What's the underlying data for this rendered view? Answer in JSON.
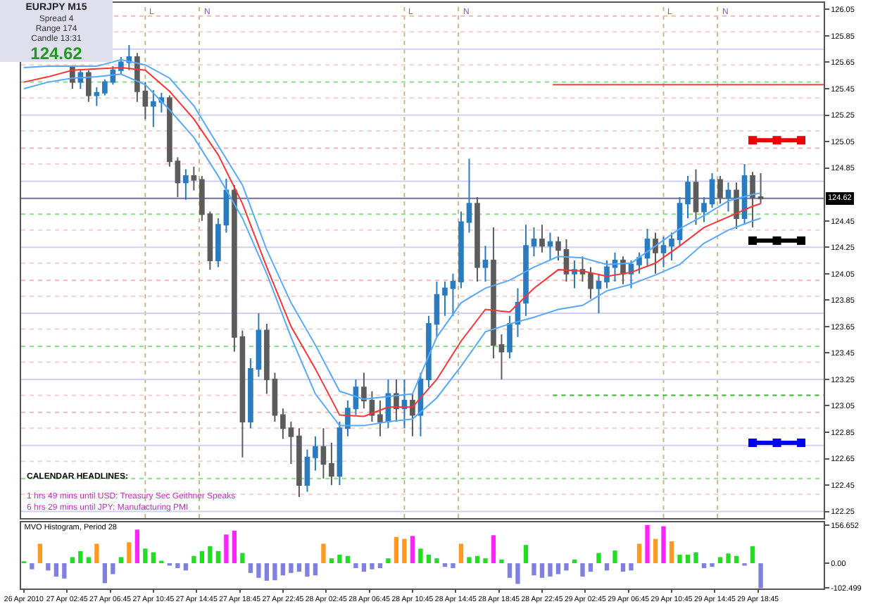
{
  "chart_data": [
    {
      "type": "candlestick",
      "title": "EURJPY M15",
      "annotations": [
        "Spread 4",
        "Range 174",
        "Candle 13:31",
        "124.62",
        "CALENDAR HEADLINES:",
        "1 hrs 49 mins until USD: Treasury Sec Geithner Speaks",
        "6 hrs 29 mins until JPY: Manufacturing PMI"
      ],
      "x": [
        "2010-04-27T03:15",
        "2010-04-27T04:00",
        "2010-04-27T04:45",
        "2010-04-27T05:30",
        "2010-04-27T06:15",
        "2010-04-27T07:00",
        "2010-04-27T07:45",
        "2010-04-27T08:30",
        "2010-04-27T09:15",
        "2010-04-27T10:00",
        "2010-04-27T10:45",
        "2010-04-27T11:30",
        "2010-04-27T12:15",
        "2010-04-27T13:00",
        "2010-04-27T13:45",
        "2010-04-27T14:30",
        "2010-04-27T15:15",
        "2010-04-27T16:00",
        "2010-04-27T16:45",
        "2010-04-27T17:30",
        "2010-04-27T18:15",
        "2010-04-27T19:00",
        "2010-04-27T19:45",
        "2010-04-27T20:30",
        "2010-04-27T21:15",
        "2010-04-27T22:00",
        "2010-04-27T22:45",
        "2010-04-27T23:30",
        "2010-04-28T00:15",
        "2010-04-28T01:00",
        "2010-04-28T01:45",
        "2010-04-28T02:30",
        "2010-04-28T03:15",
        "2010-04-28T04:00",
        "2010-04-28T04:45",
        "2010-04-28T05:30",
        "2010-04-28T06:15",
        "2010-04-28T07:00",
        "2010-04-28T07:45",
        "2010-04-28T08:30",
        "2010-04-28T09:15",
        "2010-04-28T10:00",
        "2010-04-28T10:45",
        "2010-04-28T11:30",
        "2010-04-28T12:15",
        "2010-04-28T13:00",
        "2010-04-28T13:45",
        "2010-04-28T14:30",
        "2010-04-28T15:15",
        "2010-04-28T16:00",
        "2010-04-28T16:45",
        "2010-04-28T17:30",
        "2010-04-28T18:15",
        "2010-04-28T19:00",
        "2010-04-28T19:45",
        "2010-04-28T20:30",
        "2010-04-28T21:15",
        "2010-04-28T22:00",
        "2010-04-28T22:45",
        "2010-04-28T23:30",
        "2010-04-29T00:15",
        "2010-04-29T01:00",
        "2010-04-29T01:45",
        "2010-04-29T02:30",
        "2010-04-29T03:15",
        "2010-04-29T04:00",
        "2010-04-29T04:45",
        "2010-04-29T05:30",
        "2010-04-29T06:15",
        "2010-04-29T07:00",
        "2010-04-29T07:45",
        "2010-04-29T08:30",
        "2010-04-29T09:15",
        "2010-04-29T10:00",
        "2010-04-29T10:45",
        "2010-04-29T11:30",
        "2010-04-29T12:15",
        "2010-04-29T13:00",
        "2010-04-29T13:45",
        "2010-04-29T14:30",
        "2010-04-29T15:15",
        "2010-04-29T16:00",
        "2010-04-29T16:45",
        "2010-04-29T17:30",
        "2010-04-29T18:15",
        "2010-04-29T19:00"
      ],
      "ohlc": [
        [
          125.61,
          125.61,
          125.45,
          125.5
        ],
        [
          125.5,
          125.59,
          125.45,
          125.57
        ],
        [
          125.57,
          125.59,
          125.35,
          125.4
        ],
        [
          125.4,
          125.46,
          125.32,
          125.42
        ],
        [
          125.42,
          125.52,
          125.4,
          125.5
        ],
        [
          125.5,
          125.62,
          125.48,
          125.59
        ],
        [
          125.59,
          125.69,
          125.56,
          125.65
        ],
        [
          125.65,
          125.78,
          125.59,
          125.69
        ],
        [
          125.69,
          125.72,
          125.35,
          125.43
        ],
        [
          125.43,
          125.5,
          125.22,
          125.32
        ],
        [
          125.32,
          125.44,
          125.16,
          125.35
        ],
        [
          125.35,
          125.42,
          125.27,
          125.38
        ],
        [
          125.38,
          125.4,
          124.86,
          124.9
        ],
        [
          124.9,
          124.93,
          124.63,
          124.74
        ],
        [
          124.74,
          124.84,
          124.61,
          124.79
        ],
        [
          124.79,
          124.86,
          124.68,
          124.76
        ],
        [
          124.76,
          124.79,
          124.45,
          124.5
        ],
        [
          124.5,
          124.52,
          124.08,
          124.15
        ],
        [
          124.15,
          124.47,
          124.1,
          124.42
        ],
        [
          124.42,
          124.77,
          124.36,
          124.68
        ],
        [
          124.68,
          124.72,
          123.46,
          123.57
        ],
        [
          123.57,
          123.62,
          122.66,
          122.93
        ],
        [
          122.93,
          123.41,
          122.88,
          123.33
        ],
        [
          123.33,
          123.75,
          123.27,
          123.62
        ],
        [
          123.62,
          123.67,
          123.14,
          123.25
        ],
        [
          123.25,
          123.3,
          122.93,
          122.98
        ],
        [
          122.98,
          123.03,
          122.8,
          122.88
        ],
        [
          122.88,
          122.93,
          122.61,
          122.82
        ],
        [
          122.82,
          122.88,
          122.36,
          122.45
        ],
        [
          122.45,
          122.72,
          122.4,
          122.66
        ],
        [
          122.66,
          122.82,
          122.56,
          122.74
        ],
        [
          122.74,
          122.88,
          122.5,
          122.61
        ],
        [
          122.61,
          122.77,
          122.45,
          122.52
        ],
        [
          122.52,
          122.93,
          122.45,
          122.88
        ],
        [
          122.88,
          123.09,
          122.82,
          123.03
        ],
        [
          123.03,
          123.25,
          122.98,
          123.19
        ],
        [
          123.19,
          123.3,
          123.03,
          123.09
        ],
        [
          123.09,
          123.16,
          122.93,
          122.98
        ],
        [
          122.98,
          123.09,
          122.82,
          122.93
        ],
        [
          122.93,
          123.25,
          122.88,
          123.14
        ],
        [
          123.14,
          123.25,
          122.93,
          123.03
        ],
        [
          123.03,
          123.25,
          122.88,
          123.09
        ],
        [
          123.09,
          123.14,
          122.82,
          122.98
        ],
        [
          122.98,
          123.3,
          122.82,
          123.25
        ],
        [
          123.25,
          123.73,
          123.19,
          123.67
        ],
        [
          123.67,
          123.99,
          123.57,
          123.89
        ],
        [
          123.89,
          123.99,
          123.73,
          123.94
        ],
        [
          123.94,
          124.05,
          123.73,
          123.99
        ],
        [
          123.99,
          124.52,
          123.94,
          124.44
        ],
        [
          124.44,
          124.92,
          124.36,
          124.58
        ],
        [
          124.58,
          124.63,
          123.99,
          124.1
        ],
        [
          124.1,
          124.26,
          123.99,
          124.15
        ],
        [
          124.15,
          124.4,
          123.41,
          123.51
        ],
        [
          123.51,
          123.59,
          123.25,
          123.46
        ],
        [
          123.46,
          123.73,
          123.41,
          123.67
        ],
        [
          123.67,
          123.94,
          123.57,
          123.83
        ],
        [
          123.83,
          124.42,
          123.73,
          124.26
        ],
        [
          124.26,
          124.4,
          124.18,
          124.31
        ],
        [
          124.31,
          124.42,
          124.21,
          124.26
        ],
        [
          124.26,
          124.36,
          124.15,
          124.29
        ],
        [
          124.29,
          124.33,
          124.15,
          124.23
        ],
        [
          124.23,
          124.31,
          123.99,
          124.05
        ],
        [
          124.05,
          124.15,
          123.94,
          124.08
        ],
        [
          124.08,
          124.18,
          123.99,
          124.05
        ],
        [
          124.05,
          124.1,
          123.86,
          123.94
        ],
        [
          123.94,
          124.05,
          123.75,
          123.99
        ],
        [
          123.99,
          124.15,
          123.94,
          124.1
        ],
        [
          124.1,
          124.21,
          123.99,
          124.15
        ],
        [
          124.15,
          124.18,
          123.97,
          124.05
        ],
        [
          124.05,
          124.15,
          123.94,
          124.12
        ],
        [
          124.12,
          124.21,
          124.05,
          124.17
        ],
        [
          124.17,
          124.39,
          124.1,
          124.31
        ],
        [
          124.31,
          124.36,
          124.05,
          124.21
        ],
        [
          124.21,
          124.33,
          124.1,
          124.26
        ],
        [
          124.26,
          124.36,
          124.15,
          124.31
        ],
        [
          124.31,
          124.63,
          124.26,
          124.58
        ],
        [
          124.58,
          124.79,
          124.47,
          124.74
        ],
        [
          124.74,
          124.84,
          124.42,
          124.52
        ],
        [
          124.52,
          124.63,
          124.44,
          124.58
        ],
        [
          124.58,
          124.81,
          124.55,
          124.76
        ],
        [
          124.76,
          124.79,
          124.58,
          124.63
        ],
        [
          124.63,
          124.74,
          124.52,
          124.68
        ],
        [
          124.68,
          124.74,
          124.39,
          124.47
        ],
        [
          124.47,
          124.88,
          124.42,
          124.79
        ],
        [
          124.79,
          124.82,
          124.4,
          124.63
        ],
        [
          124.63,
          124.81,
          124.58,
          124.62
        ]
      ],
      "colors": [
        "#5c5c5c",
        "#2b7bbf",
        "#5c5c5c",
        "#2b7bbf",
        "#2b7bbf",
        "#2b7bbf",
        "#2b7bbf",
        "#2b7bbf",
        "#5c5c5c",
        "#5c5c5c",
        "#2b7bbf",
        "#2b7bbf",
        "#5c5c5c",
        "#5c5c5c",
        "#2b7bbf",
        "#5c5c5c",
        "#5c5c5c",
        "#5c5c5c",
        "#2b7bbf",
        "#2b7bbf",
        "#5c5c5c",
        "#5c5c5c",
        "#2b7bbf",
        "#2b7bbf",
        "#5c5c5c",
        "#5c5c5c",
        "#5c5c5c",
        "#5c5c5c",
        "#5c5c5c",
        "#2b7bbf",
        "#2b7bbf",
        "#5c5c5c",
        "#5c5c5c",
        "#2b7bbf",
        "#2b7bbf",
        "#2b7bbf",
        "#5c5c5c",
        "#5c5c5c",
        "#5c5c5c",
        "#2b7bbf",
        "#5c5c5c",
        "#2b7bbf",
        "#5c5c5c",
        "#2b7bbf",
        "#2b7bbf",
        "#2b7bbf",
        "#2b7bbf",
        "#2b7bbf",
        "#2b7bbf",
        "#2b7bbf",
        "#5c5c5c",
        "#2b7bbf",
        "#5c5c5c",
        "#5c5c5c",
        "#2b7bbf",
        "#2b7bbf",
        "#2b7bbf",
        "#2b7bbf",
        "#5c5c5c",
        "#2b7bbf",
        "#5c5c5c",
        "#5c5c5c",
        "#2b7bbf",
        "#5c5c5c",
        "#5c5c5c",
        "#2b7bbf",
        "#2b7bbf",
        "#2b7bbf",
        "#5c5c5c",
        "#2b7bbf",
        "#2b7bbf",
        "#2b7bbf",
        "#5c5c5c",
        "#2b7bbf",
        "#2b7bbf",
        "#2b7bbf",
        "#2b7bbf",
        "#5c5c5c",
        "#2b7bbf",
        "#2b7bbf",
        "#5c5c5c",
        "#2b7bbf",
        "#5c5c5c",
        "#2b7bbf",
        "#5c5c5c",
        "#5c5c5c"
      ],
      "series": [
        {
          "type": "line",
          "color": "#55aaff",
          "x": [
            "2010-04-26T22:45",
            "2010-04-27T01:00",
            "2010-04-27T03:15",
            "2010-04-27T05:30",
            "2010-04-27T07:45",
            "2010-04-27T10:00",
            "2010-04-27T12:15",
            "2010-04-27T14:30",
            "2010-04-27T16:45",
            "2010-04-27T19:00",
            "2010-04-27T21:15",
            "2010-04-27T23:30",
            "2010-04-28T01:45",
            "2010-04-28T04:00",
            "2010-04-28T06:15",
            "2010-04-28T08:30",
            "2010-04-28T10:45",
            "2010-04-28T13:00",
            "2010-04-28T15:15",
            "2010-04-28T17:30",
            "2010-04-28T19:45",
            "2010-04-28T22:00",
            "2010-04-29T00:15",
            "2010-04-29T02:30",
            "2010-04-29T04:45",
            "2010-04-29T07:00",
            "2010-04-29T09:15",
            "2010-04-29T11:30",
            "2010-04-29T13:45",
            "2010-04-29T16:00",
            "2010-04-29T18:15",
            "2010-04-29T19:00"
          ],
          "values": [
            125.61,
            125.62,
            125.62,
            125.62,
            125.67,
            125.63,
            125.53,
            125.32,
            125.02,
            124.72,
            124.23,
            123.83,
            123.51,
            123.16,
            123.1,
            123.12,
            123.14,
            123.57,
            123.83,
            123.94,
            124.0,
            124.1,
            124.18,
            124.17,
            124.12,
            124.13,
            124.26,
            124.39,
            124.49,
            124.6,
            124.65,
            124.66
          ]
        },
        {
          "type": "line",
          "color": "#ff3333",
          "x": [
            "2010-04-26T22:45",
            "2010-04-27T01:00",
            "2010-04-27T03:15",
            "2010-04-27T05:30",
            "2010-04-27T07:45",
            "2010-04-27T10:00",
            "2010-04-27T12:15",
            "2010-04-27T14:30",
            "2010-04-27T16:45",
            "2010-04-27T19:00",
            "2010-04-27T21:15",
            "2010-04-27T23:30",
            "2010-04-28T01:45",
            "2010-04-28T04:00",
            "2010-04-28T06:15",
            "2010-04-28T08:30",
            "2010-04-28T10:45",
            "2010-04-28T13:00",
            "2010-04-28T15:15",
            "2010-04-28T17:30",
            "2010-04-28T19:45",
            "2010-04-28T22:00",
            "2010-04-29T00:15",
            "2010-04-29T02:30",
            "2010-04-29T04:45",
            "2010-04-29T07:00",
            "2010-04-29T09:15",
            "2010-04-29T11:30",
            "2010-04-29T13:45",
            "2010-04-29T16:00",
            "2010-04-29T18:15",
            "2010-04-29T19:00"
          ],
          "values": [
            125.5,
            125.54,
            125.59,
            125.6,
            125.61,
            125.59,
            125.43,
            125.22,
            124.95,
            124.58,
            124.1,
            123.65,
            123.33,
            122.98,
            122.97,
            123.04,
            123.04,
            123.25,
            123.54,
            123.78,
            123.76,
            123.94,
            124.08,
            124.07,
            124.03,
            124.06,
            124.13,
            124.26,
            124.4,
            124.48,
            124.56,
            124.58
          ]
        },
        {
          "type": "line",
          "color": "#55aaff",
          "x": [
            "2010-04-26T22:45",
            "2010-04-27T01:00",
            "2010-04-27T03:15",
            "2010-04-27T05:30",
            "2010-04-27T07:45",
            "2010-04-27T10:00",
            "2010-04-27T12:15",
            "2010-04-27T14:30",
            "2010-04-27T16:45",
            "2010-04-27T19:00",
            "2010-04-27T21:15",
            "2010-04-27T23:30",
            "2010-04-28T01:45",
            "2010-04-28T04:00",
            "2010-04-28T06:15",
            "2010-04-28T08:30",
            "2010-04-28T10:45",
            "2010-04-28T13:00",
            "2010-04-28T15:15",
            "2010-04-28T17:30",
            "2010-04-28T19:45",
            "2010-04-28T22:00",
            "2010-04-29T00:15",
            "2010-04-29T02:30",
            "2010-04-29T04:45",
            "2010-04-29T07:00",
            "2010-04-29T09:15",
            "2010-04-29T11:30",
            "2010-04-29T13:45",
            "2010-04-29T16:00",
            "2010-04-29T18:15",
            "2010-04-29T19:00"
          ],
          "values": [
            125.45,
            125.5,
            125.53,
            125.54,
            125.56,
            125.48,
            125.29,
            125.08,
            124.79,
            124.47,
            124.05,
            123.57,
            123.14,
            122.9,
            122.9,
            122.93,
            122.95,
            123.11,
            123.35,
            123.61,
            123.67,
            123.72,
            123.78,
            123.81,
            123.92,
            123.97,
            124.04,
            124.12,
            124.28,
            124.38,
            124.45,
            124.47
          ]
        },
        {
          "type": "line",
          "color": "#ff4040",
          "x": [
            "2010-04-28T23:45",
            "2010-04-30T00:50"
          ],
          "values": [
            125.48,
            125.48
          ]
        },
        {
          "type": "line",
          "color": "#22cc22",
          "line_style": "dotted",
          "x": [
            "2010-04-28T23:45",
            "2010-04-30T00:50"
          ],
          "values": [
            123.13,
            123.13
          ]
        },
        {
          "type": "line",
          "color": "#ee0000",
          "marker": "square",
          "x": [
            "2010-04-29T18:15",
            "2010-04-29T20:30",
            "2010-04-29T22:45"
          ],
          "values": [
            125.06,
            125.06,
            125.06
          ]
        },
        {
          "type": "line",
          "color": "#000000",
          "marker": "square",
          "x": [
            "2010-04-29T18:15",
            "2010-04-29T20:30",
            "2010-04-29T22:45"
          ],
          "values": [
            124.3,
            124.3,
            124.3
          ]
        },
        {
          "type": "line",
          "color": "#0000ee",
          "marker": "square",
          "x": [
            "2010-04-29T18:15",
            "2010-04-29T20:30",
            "2010-04-29T22:45"
          ],
          "values": [
            122.77,
            122.77,
            122.77
          ]
        }
      ],
      "xlim": [
        "2010-04-26T22:30",
        "2010-04-30T00:50"
      ],
      "ylim": [
        122.2,
        126.1
      ],
      "yticks": [
        126.05,
        125.85,
        125.65,
        125.45,
        125.25,
        125.05,
        124.85,
        124.45,
        124.25,
        124.05,
        123.85,
        123.65,
        123.45,
        123.25,
        123.05,
        122.85,
        122.65,
        122.45,
        122.25
      ],
      "tick_labels": "y",
      "ref_lines": [
        {
          "axis": "x",
          "value": "2010-04-27T10:00",
          "label": "L",
          "color": "#c8b88a",
          "line_style": "dotted"
        },
        {
          "axis": "x",
          "value": "2010-04-27T15:00",
          "label": "N",
          "color": "#c8b88a",
          "line_style": "dotted"
        },
        {
          "axis": "x",
          "value": "2010-04-28T10:00",
          "label": "L",
          "color": "#c8b88a",
          "line_style": "dotted"
        },
        {
          "axis": "x",
          "value": "2010-04-28T15:00",
          "label": "N",
          "color": "#c8b88a",
          "line_style": "dotted"
        },
        {
          "axis": "x",
          "value": "2010-04-29T10:00",
          "label": "L",
          "color": "#c8b88a",
          "line_style": "dotted"
        },
        {
          "axis": "x",
          "value": "2010-04-29T15:00",
          "label": "N",
          "color": "#c8b88a",
          "line_style": "dotted"
        },
        {
          "axis": "y",
          "value": 124.62,
          "label": "124.62",
          "color": "#707099",
          "line_style": "solid"
        },
        {
          "axis": "y",
          "value": 126,
          "color": "#f0b8b8",
          "line_style": "dotted"
        },
        {
          "axis": "y",
          "value": 125.88,
          "color": "#f5d0d0",
          "line_style": "dotted"
        },
        {
          "axis": "y",
          "value": 125.75,
          "color": "#d0d0f2",
          "line_style": "solid"
        },
        {
          "axis": "y",
          "value": 125.63,
          "color": "#f5d0d0",
          "line_style": "dotted"
        },
        {
          "axis": "y",
          "value": 125.5,
          "color": "#88e088",
          "line_style": "dotted"
        },
        {
          "axis": "y",
          "value": 125.38,
          "color": "#f5d0d0",
          "line_style": "dotted"
        },
        {
          "axis": "y",
          "value": 125.25,
          "color": "#d0d0f2",
          "line_style": "solid"
        },
        {
          "axis": "y",
          "value": 125.13,
          "color": "#f5d0d0",
          "line_style": "dotted"
        },
        {
          "axis": "y",
          "value": 125,
          "color": "#f0b8b8",
          "line_style": "dotted"
        },
        {
          "axis": "y",
          "value": 124.88,
          "color": "#f5d0d0",
          "line_style": "dotted"
        },
        {
          "axis": "y",
          "value": 124.75,
          "color": "#d0d0f2",
          "line_style": "solid"
        },
        {
          "axis": "y",
          "value": 124.5,
          "color": "#88e088",
          "line_style": "dotted"
        },
        {
          "axis": "y",
          "value": 124.38,
          "color": "#f5d0d0",
          "line_style": "dotted"
        },
        {
          "axis": "y",
          "value": 124.25,
          "color": "#d0d0f2",
          "line_style": "solid"
        },
        {
          "axis": "y",
          "value": 124.13,
          "color": "#f5d0d0",
          "line_style": "dotted"
        },
        {
          "axis": "y",
          "value": 124,
          "color": "#f0b8b8",
          "line_style": "dotted"
        },
        {
          "axis": "y",
          "value": 123.88,
          "color": "#f5d0d0",
          "line_style": "dotted"
        },
        {
          "axis": "y",
          "value": 123.75,
          "color": "#d0d0f2",
          "line_style": "solid"
        },
        {
          "axis": "y",
          "value": 123.63,
          "color": "#f5d0d0",
          "line_style": "dotted"
        },
        {
          "axis": "y",
          "value": 123.5,
          "color": "#88e088",
          "line_style": "dotted"
        },
        {
          "axis": "y",
          "value": 123.38,
          "color": "#f5d0d0",
          "line_style": "dotted"
        },
        {
          "axis": "y",
          "value": 123.25,
          "color": "#d0d0f2",
          "line_style": "solid"
        },
        {
          "axis": "y",
          "value": 123.13,
          "color": "#f5d0d0",
          "line_style": "dotted"
        },
        {
          "axis": "y",
          "value": 123,
          "color": "#f0b8b8",
          "line_style": "dotted"
        },
        {
          "axis": "y",
          "value": 122.88,
          "color": "#f5d0d0",
          "line_style": "dotted"
        },
        {
          "axis": "y",
          "value": 122.75,
          "color": "#d0d0f2",
          "line_style": "solid"
        },
        {
          "axis": "y",
          "value": 122.63,
          "color": "#f5d0d0",
          "line_style": "dotted"
        },
        {
          "axis": "y",
          "value": 122.5,
          "color": "#88e088",
          "line_style": "dotted"
        },
        {
          "axis": "y",
          "value": 122.38,
          "color": "#f5d0d0",
          "line_style": "dotted"
        },
        {
          "axis": "y",
          "value": 122.25,
          "color": "#d0d0f2",
          "line_style": "solid"
        }
      ]
    },
    {
      "type": "bar",
      "title": "MVO Histogram, Period 28",
      "x": [
        "2010-04-26T22:45",
        "2010-04-26T23:30",
        "2010-04-27T00:15",
        "2010-04-27T01:00",
        "2010-04-27T01:45",
        "2010-04-27T02:30",
        "2010-04-27T03:15",
        "2010-04-27T04:00",
        "2010-04-27T04:45",
        "2010-04-27T05:30",
        "2010-04-27T06:15",
        "2010-04-27T07:00",
        "2010-04-27T07:45",
        "2010-04-27T08:30",
        "2010-04-27T09:15",
        "2010-04-27T10:00",
        "2010-04-27T10:45",
        "2010-04-27T11:30",
        "2010-04-27T12:15",
        "2010-04-27T13:00",
        "2010-04-27T13:45",
        "2010-04-27T14:30",
        "2010-04-27T15:15",
        "2010-04-27T16:00",
        "2010-04-27T16:45",
        "2010-04-27T17:30",
        "2010-04-27T18:15",
        "2010-04-27T19:00",
        "2010-04-27T19:45",
        "2010-04-27T20:30",
        "2010-04-27T21:15",
        "2010-04-27T22:00",
        "2010-04-27T22:45",
        "2010-04-27T23:30",
        "2010-04-28T00:15",
        "2010-04-28T01:00",
        "2010-04-28T01:45",
        "2010-04-28T02:30",
        "2010-04-28T03:15",
        "2010-04-28T04:00",
        "2010-04-28T04:45",
        "2010-04-28T05:30",
        "2010-04-28T06:15",
        "2010-04-28T07:00",
        "2010-04-28T07:45",
        "2010-04-28T08:30",
        "2010-04-28T09:15",
        "2010-04-28T10:00",
        "2010-04-28T10:45",
        "2010-04-28T11:30",
        "2010-04-28T12:15",
        "2010-04-28T13:00",
        "2010-04-28T13:45",
        "2010-04-28T14:30",
        "2010-04-28T15:15",
        "2010-04-28T16:00",
        "2010-04-28T16:45",
        "2010-04-28T17:30",
        "2010-04-28T18:15",
        "2010-04-28T19:00",
        "2010-04-28T19:45",
        "2010-04-28T20:30",
        "2010-04-28T21:15",
        "2010-04-28T22:00",
        "2010-04-28T22:45",
        "2010-04-28T23:30",
        "2010-04-29T00:15",
        "2010-04-29T01:00",
        "2010-04-29T01:45",
        "2010-04-29T02:30",
        "2010-04-29T03:15",
        "2010-04-29T04:00",
        "2010-04-29T04:45",
        "2010-04-29T05:30",
        "2010-04-29T06:15",
        "2010-04-29T07:00",
        "2010-04-29T07:45",
        "2010-04-29T08:30",
        "2010-04-29T09:15",
        "2010-04-29T10:00",
        "2010-04-29T10:45",
        "2010-04-29T11:30",
        "2010-04-29T12:15",
        "2010-04-29T13:00",
        "2010-04-29T13:45",
        "2010-04-29T14:30",
        "2010-04-29T15:15",
        "2010-04-29T16:00",
        "2010-04-29T16:45",
        "2010-04-29T17:30",
        "2010-04-29T18:15",
        "2010-04-29T19:00"
      ],
      "values": [
        8,
        -25,
        80,
        -30,
        -55,
        -63,
        25,
        50,
        25,
        80,
        -82,
        -45,
        25,
        86,
        138,
        60,
        45,
        10,
        -10,
        -20,
        -30,
        30,
        50,
        70,
        50,
        118,
        134,
        42,
        -40,
        -60,
        -72,
        -70,
        -50,
        -40,
        -35,
        -55,
        -50,
        80,
        20,
        35,
        30,
        -20,
        -35,
        -25,
        -20,
        20,
        108,
        100,
        112,
        60,
        35,
        20,
        -15,
        -20,
        80,
        25,
        30,
        20,
        115,
        15,
        -60,
        -85,
        75,
        -50,
        -60,
        -55,
        -45,
        -30,
        15,
        -55,
        -35,
        42,
        -30,
        52,
        -35,
        -30,
        80,
        156.652,
        100,
        152,
        90,
        35,
        35,
        45,
        -20,
        -15,
        25,
        40,
        30,
        -10,
        70,
        -102.499
      ],
      "colors": [
        "#22dd22",
        "#8080e0",
        "#ff9922",
        "#8080e0",
        "#8080e0",
        "#8080e0",
        "#22dd22",
        "#22dd22",
        "#22dd22",
        "#ff9922",
        "#8080e0",
        "#8080e0",
        "#22dd22",
        "#ff9922",
        "#ff22ff",
        "#22dd22",
        "#22dd22",
        "#22dd22",
        "#8080e0",
        "#8080e0",
        "#8080e0",
        "#22dd22",
        "#22dd22",
        "#22dd22",
        "#22dd22",
        "#ff22ff",
        "#ff22ff",
        "#22dd22",
        "#8080e0",
        "#8080e0",
        "#8080e0",
        "#8080e0",
        "#8080e0",
        "#8080e0",
        "#8080e0",
        "#8080e0",
        "#8080e0",
        "#ff9922",
        "#22dd22",
        "#22dd22",
        "#22dd22",
        "#8080e0",
        "#8080e0",
        "#8080e0",
        "#8080e0",
        "#22dd22",
        "#ff9922",
        "#ff9922",
        "#ff22ff",
        "#22dd22",
        "#22dd22",
        "#22dd22",
        "#8080e0",
        "#8080e0",
        "#ff9922",
        "#22dd22",
        "#22dd22",
        "#22dd22",
        "#ff22ff",
        "#22dd22",
        "#8080e0",
        "#8080e0",
        "#22dd22",
        "#8080e0",
        "#8080e0",
        "#8080e0",
        "#8080e0",
        "#8080e0",
        "#22dd22",
        "#8080e0",
        "#8080e0",
        "#22dd22",
        "#8080e0",
        "#22dd22",
        "#8080e0",
        "#8080e0",
        "#ff9922",
        "#ff22ff",
        "#ff9922",
        "#ff22ff",
        "#ff9922",
        "#22dd22",
        "#22dd22",
        "#22dd22",
        "#8080e0",
        "#8080e0",
        "#22dd22",
        "#22dd22",
        "#22dd22",
        "#8080e0",
        "#22dd22",
        "#8080e0"
      ],
      "xlim": [
        "2010-04-26T22:30",
        "2010-04-30T00:50"
      ],
      "ylim": [
        -104,
        168
      ],
      "xticks": [
        {
          "value": "2010-04-26T22:45",
          "label": "26 Apr 2010"
        },
        {
          "value": "2010-04-27T02:45",
          "label": "27 Apr 02:45"
        },
        {
          "value": "2010-04-27T06:45",
          "label": "27 Apr 06:45"
        },
        {
          "value": "2010-04-27T10:45",
          "label": "27 Apr 10:45"
        },
        {
          "value": "2010-04-27T14:45",
          "label": "27 Apr 14:45"
        },
        {
          "value": "2010-04-27T18:45",
          "label": "27 Apr 18:45"
        },
        {
          "value": "2010-04-27T22:45",
          "label": "27 Apr 22:45"
        },
        {
          "value": "2010-04-28T02:45",
          "label": "28 Apr 02:45"
        },
        {
          "value": "2010-04-28T06:45",
          "label": "28 Apr 06:45"
        },
        {
          "value": "2010-04-28T10:45",
          "label": "28 Apr 10:45"
        },
        {
          "value": "2010-04-28T14:45",
          "label": "28 Apr 14:45"
        },
        {
          "value": "2010-04-28T18:45",
          "label": "28 Apr 18:45"
        },
        {
          "value": "2010-04-28T22:45",
          "label": "28 Apr 22:45"
        },
        {
          "value": "2010-04-29T02:45",
          "label": "29 Apr 02:45"
        },
        {
          "value": "2010-04-29T06:45",
          "label": "29 Apr 06:45"
        },
        {
          "value": "2010-04-29T10:45",
          "label": "29 Apr 10:45"
        },
        {
          "value": "2010-04-29T14:45",
          "label": "29 Apr 14:45"
        },
        {
          "value": "2010-04-29T18:45",
          "label": "29 Apr 18:45"
        }
      ],
      "yticks": [
        156.652,
        {
          "value": 0,
          "label": "0.00"
        },
        -102.499
      ]
    }
  ]
}
